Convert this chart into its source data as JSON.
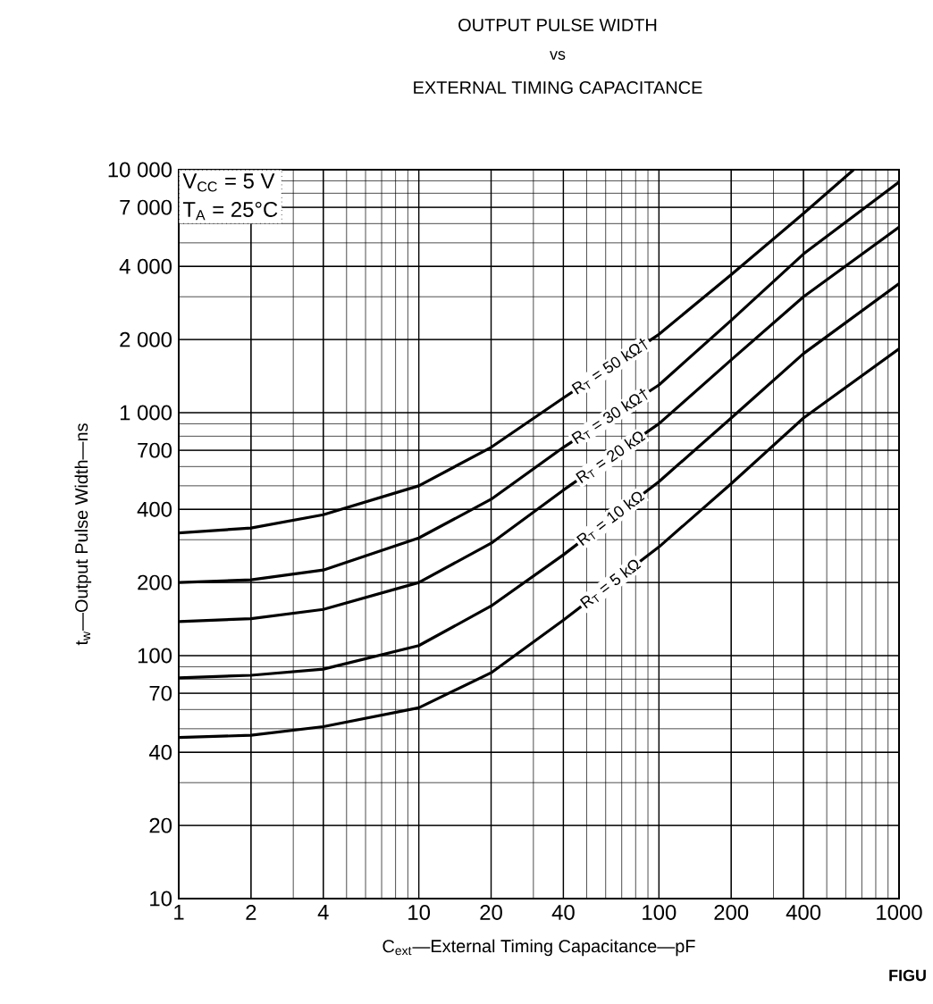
{
  "chart_data": {
    "type": "line",
    "title": "OUTPUT PULSE WIDTH",
    "subtitle": "vs",
    "xlabel": "C$_{ext}$—External Timing Capacitance—pF",
    "ylabel": "t$_{w}$—Output Pulse Width—ns",
    "annotations": [
      "EXTERNAL TIMING CAPACITANCE",
      "V$_{CC}$ = 5 V",
      "T$_{A}$ = 25°C",
      "FIGU"
    ],
    "log": "xy",
    "grid": true,
    "xlim": [
      1,
      1000
    ],
    "ylim": [
      10,
      10000
    ],
    "xticks": [
      1,
      2,
      4,
      10,
      20,
      40,
      100,
      200,
      400,
      1000
    ],
    "yticks": [
      10,
      20,
      40,
      70,
      100,
      200,
      400,
      700,
      {
        "value": 1000,
        "label": "1 000"
      },
      {
        "value": 2000,
        "label": "2 000"
      },
      {
        "value": 4000,
        "label": "4 000"
      },
      {
        "value": 7000,
        "label": "7 000"
      },
      {
        "value": 10000,
        "label": "10 000"
      }
    ],
    "x": [
      1,
      2,
      4,
      10,
      20,
      40,
      100,
      200,
      400,
      1000
    ],
    "series": [
      {
        "name": "R$_{T}$ = 50 kΩ†",
        "color": "#000000",
        "x": [
          1,
          2,
          4,
          10,
          20,
          40,
          100,
          200,
          400,
          647
        ],
        "values": [
          320,
          335,
          380,
          500,
          720,
          1150,
          2100,
          3700,
          6600,
          10000
        ]
      },
      {
        "name": "R$_{T}$ = 30 kΩ†",
        "color": "#000000",
        "values": [
          200,
          205,
          225,
          305,
          440,
          720,
          1300,
          2400,
          4500,
          8900
        ]
      },
      {
        "name": "R$_{T}$ = 20 kΩ",
        "color": "#000000",
        "values": [
          138,
          142,
          155,
          200,
          290,
          480,
          900,
          1650,
          3000,
          5800
        ]
      },
      {
        "name": "R$_{T}$ = 10 kΩ",
        "color": "#000000",
        "values": [
          81,
          83,
          88,
          110,
          160,
          260,
          520,
          950,
          1750,
          3400
        ]
      },
      {
        "name": "R$_{T}$ = 5 kΩ",
        "color": "#000000",
        "values": [
          46,
          47,
          51,
          61,
          85,
          140,
          280,
          510,
          950,
          1830
        ]
      }
    ]
  }
}
